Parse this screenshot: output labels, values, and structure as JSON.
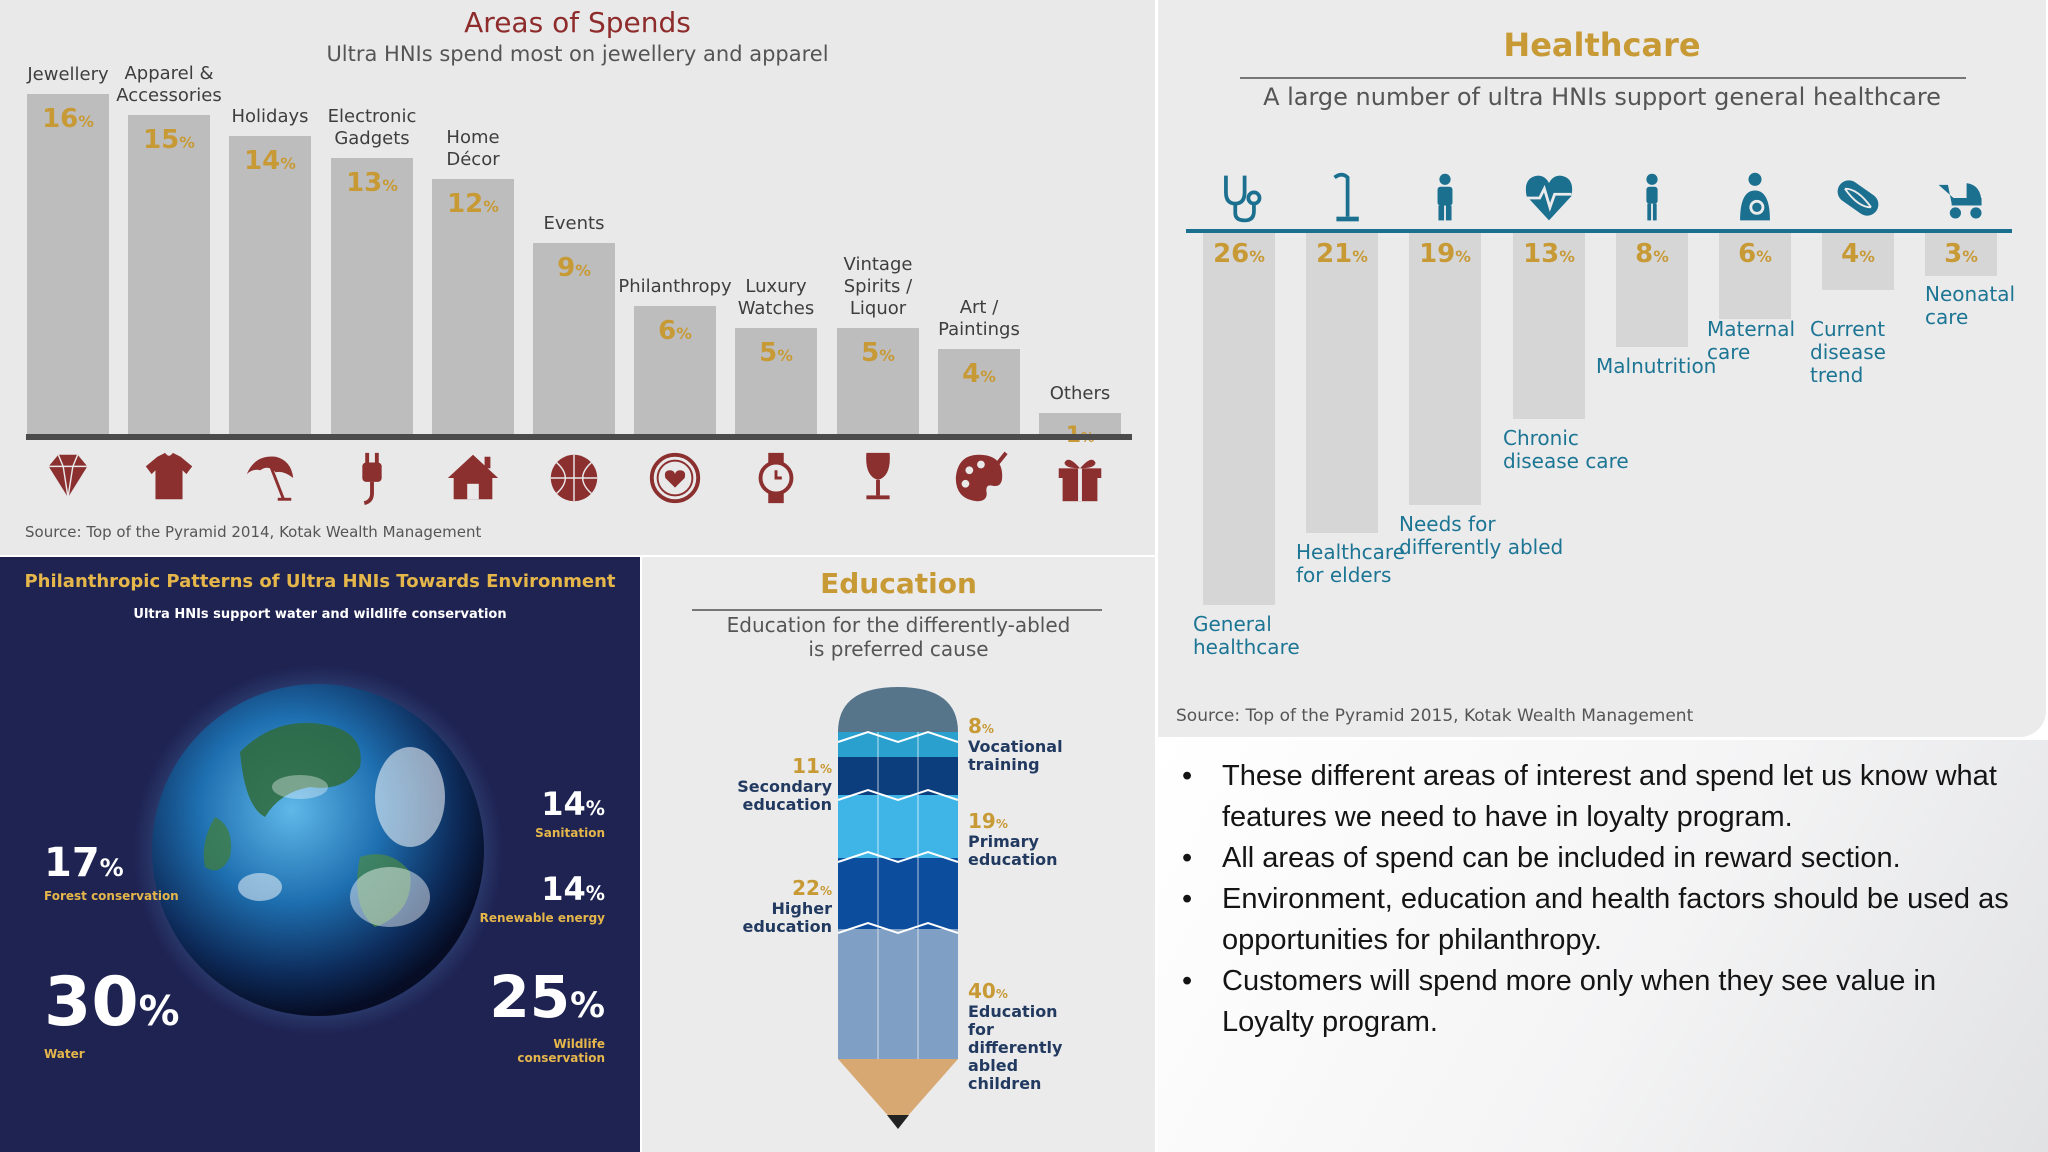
{
  "spends": {
    "title": "Areas of Spends",
    "subtitle": "Ultra HNIs spend most on jewellery and apparel",
    "source": "Source: Top of the Pyramid 2014, Kotak Wealth Management"
  },
  "healthcare": {
    "title": "Healthcare",
    "subtitle": "A large number of ultra HNIs support general healthcare",
    "source": "Source: Top of the Pyramid 2015, Kotak Wealth Management"
  },
  "environment": {
    "title": "Philanthropic Patterns of Ultra HNIs Towards Environment",
    "subtitle": "Ultra HNIs support water and wildlife conservation",
    "items": [
      {
        "value": "17",
        "label": "Forest conservation"
      },
      {
        "value": "30",
        "label": "Water"
      },
      {
        "value": "14",
        "label": "Sanitation"
      },
      {
        "value": "14",
        "label": "Renewable energy"
      },
      {
        "value": "25",
        "label": "Wildlife conservation"
      }
    ]
  },
  "education": {
    "title": "Education",
    "subtitle_line1": "Education for the differently-abled",
    "subtitle_line2": "is preferred cause",
    "items": [
      {
        "value": "8",
        "line1": "Vocational",
        "line2": "training",
        "line3": ""
      },
      {
        "value": "11",
        "line1": "Secondary",
        "line2": "education",
        "line3": ""
      },
      {
        "value": "19",
        "line1": "Primary",
        "line2": "education",
        "line3": ""
      },
      {
        "value": "22",
        "line1": "Higher",
        "line2": "education",
        "line3": ""
      },
      {
        "value": "40",
        "line1": "Education for",
        "line2": "differently abled",
        "line3": "children"
      }
    ]
  },
  "notes": {
    "bullets": [
      "These different areas of interest and spend let us know what features we need to have in loyalty program.",
      "All areas of spend can be included in reward section.",
      "Environment, education and health factors should be used as opportunities for philanthropy.",
      "Customers will spend more only when they see value in Loyalty program."
    ]
  },
  "colors": {
    "spends_accent": "#8e2c2c",
    "value_gold": "#c79a36",
    "health_blue": "#1b6f8f",
    "env_background": "#1e2352"
  },
  "chart_data": [
    {
      "type": "bar",
      "title": "Areas of Spends",
      "subtitle": "Ultra HNIs spend most on jewellery and apparel",
      "categories": [
        [
          "Jewellery"
        ],
        [
          "Apparel &",
          "Accessories"
        ],
        [
          "Holidays"
        ],
        [
          "Electronic",
          "Gadgets"
        ],
        [
          "Home",
          "Décor"
        ],
        [
          "Events"
        ],
        [
          "Philanthropy"
        ],
        [
          "Luxury",
          "Watches"
        ],
        [
          "Vintage",
          "Spirits /",
          "Liquor"
        ],
        [
          "Art /",
          "Paintings"
        ],
        [
          "Others"
        ]
      ],
      "values": [
        16,
        15,
        14,
        13,
        12,
        9,
        6,
        5,
        5,
        4,
        1
      ],
      "unit": "%",
      "icons": [
        "diamond-icon",
        "shirt-icon",
        "beach-umbrella-icon",
        "plug-icon",
        "house-icon",
        "ball-icon",
        "heart-badge-icon",
        "watch-icon",
        "wine-glass-icon",
        "palette-icon",
        "gift-icon"
      ],
      "ylim": [
        0,
        16
      ]
    },
    {
      "type": "bar",
      "title": "Healthcare",
      "subtitle": "A large number of ultra HNIs support general healthcare",
      "categories": [
        [
          "General",
          "healthcare"
        ],
        [
          "Healthcare",
          "for elders"
        ],
        [
          "Needs for",
          "differently abled"
        ],
        [
          "Chronic",
          "disease care"
        ],
        [
          "Malnutrition"
        ],
        [
          "Maternal",
          "care"
        ],
        [
          "Current",
          "disease",
          "trend"
        ],
        [
          "Neonatal",
          "care"
        ]
      ],
      "values": [
        26,
        21,
        19,
        13,
        8,
        6,
        4,
        3
      ],
      "unit": "%",
      "icons": [
        "stethoscope-icon",
        "walking-cane-icon",
        "person-icon",
        "heartbeat-icon",
        "child-icon",
        "mother-baby-icon",
        "dna-icon",
        "baby-stroller-icon"
      ],
      "ylim": [
        0,
        26
      ]
    }
  ]
}
